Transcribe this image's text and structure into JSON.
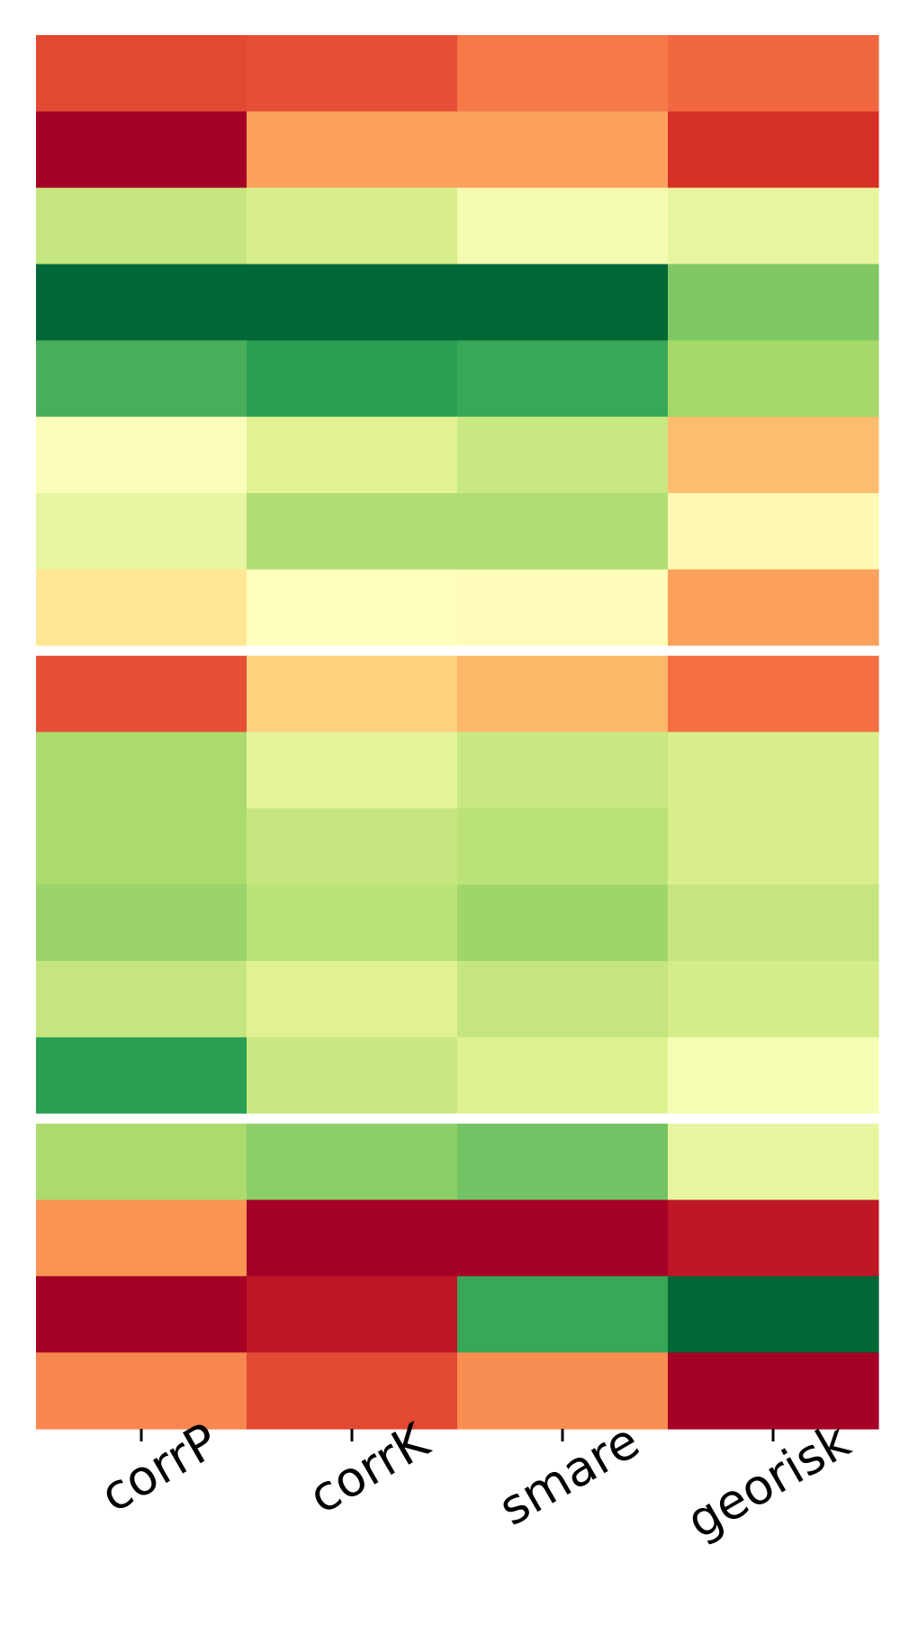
{
  "chart_data": {
    "type": "heatmap",
    "title": "",
    "xlabel": "",
    "ylabel": "",
    "columns": [
      "corrP",
      "corrK",
      "smare",
      "georisk"
    ],
    "colormap": "RdYlGn",
    "value_range": [
      0,
      1
    ],
    "legend": "none",
    "grid": false,
    "groups": [
      {
        "rows": [
          [
            0.14,
            0.15,
            0.22,
            0.19
          ],
          [
            0.0,
            0.28,
            0.28,
            0.1
          ],
          [
            0.64,
            0.6,
            0.53,
            0.56
          ],
          [
            1.0,
            1.0,
            1.0,
            0.76
          ],
          [
            0.84,
            0.88,
            0.86,
            0.7
          ],
          [
            0.51,
            0.58,
            0.63,
            0.33
          ],
          [
            0.56,
            0.68,
            0.68,
            0.48
          ],
          [
            0.42,
            0.5,
            0.49,
            0.28
          ]
        ]
      },
      {
        "rows": [
          [
            0.15,
            0.37,
            0.32,
            0.2
          ],
          [
            0.69,
            0.57,
            0.63,
            0.6
          ],
          [
            0.69,
            0.64,
            0.66,
            0.6
          ],
          [
            0.72,
            0.66,
            0.71,
            0.64
          ],
          [
            0.64,
            0.58,
            0.64,
            0.61
          ],
          [
            0.88,
            0.63,
            0.59,
            0.52
          ]
        ]
      },
      {
        "rows": [
          [
            0.69,
            0.74,
            0.78,
            0.56
          ],
          [
            0.26,
            0.0,
            0.0,
            0.05
          ],
          [
            0.0,
            0.05,
            0.86,
            1.0
          ],
          [
            0.24,
            0.14,
            0.25,
            0.0
          ]
        ]
      }
    ]
  }
}
